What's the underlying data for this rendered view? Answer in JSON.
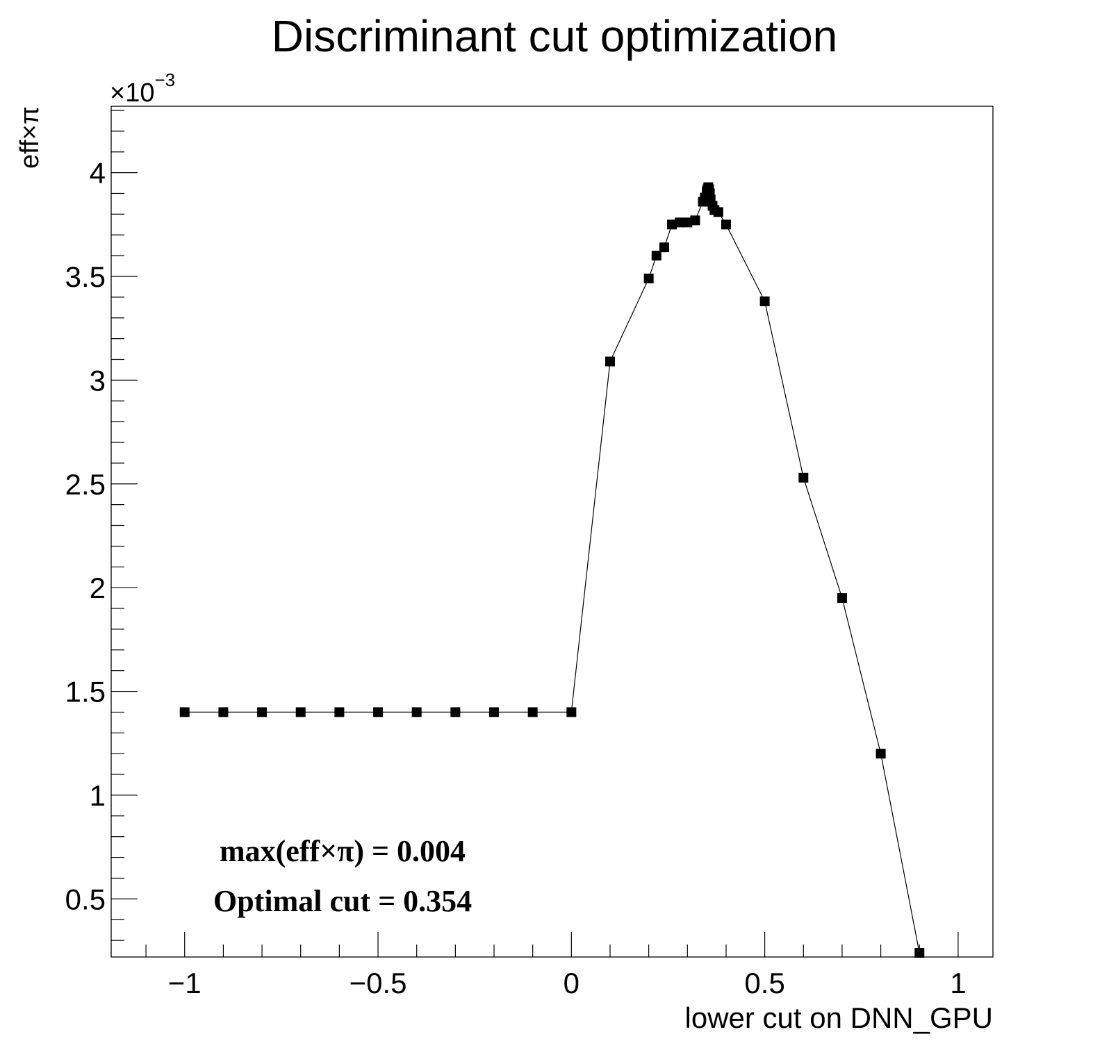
{
  "chart_data": {
    "type": "line",
    "title": "Discriminant cut optimization",
    "xlabel": "lower cut on DNN_GPU",
    "ylabel": "eff×π",
    "y_multiplier": "×10",
    "y_multiplier_exp": "−3",
    "xlim": [
      -1.19,
      1.09
    ],
    "ylim": [
      0.22,
      4.32
    ],
    "x_ticks": [
      -1,
      -0.5,
      0,
      0.5,
      1
    ],
    "x_tick_labels": [
      "−1",
      "−0.5",
      "0",
      "0.5",
      "1"
    ],
    "y_ticks": [
      0.5,
      1,
      1.5,
      2,
      2.5,
      3,
      3.5,
      4
    ],
    "y_tick_labels": [
      "0.5",
      "1",
      "1.5",
      "2",
      "2.5",
      "3",
      "3.5",
      "4"
    ],
    "grid": false,
    "marker": "square",
    "color": "#000000",
    "series": [
      {
        "x": [
          -1.0,
          -0.9,
          -0.8,
          -0.7,
          -0.6,
          -0.5,
          -0.4,
          -0.3,
          -0.2,
          -0.1,
          0.0,
          0.1,
          0.2,
          0.22,
          0.24,
          0.26,
          0.28,
          0.3,
          0.32,
          0.34,
          0.345,
          0.35,
          0.352,
          0.354,
          0.356,
          0.358,
          0.36,
          0.365,
          0.37,
          0.38,
          0.4,
          0.5,
          0.6,
          0.7,
          0.8,
          0.9
        ],
        "y": [
          1.4,
          1.4,
          1.4,
          1.4,
          1.4,
          1.4,
          1.4,
          1.4,
          1.4,
          1.4,
          1.4,
          3.09,
          3.49,
          3.6,
          3.64,
          3.75,
          3.76,
          3.76,
          3.77,
          3.86,
          3.88,
          3.91,
          3.92,
          3.93,
          3.92,
          3.9,
          3.87,
          3.84,
          3.82,
          3.81,
          3.75,
          3.38,
          2.53,
          1.95,
          1.2,
          0.24
        ]
      }
    ],
    "annotations": {
      "max_text": "max(eff×π) =  0.004",
      "cut_text": "Optimal cut =  0.354"
    }
  }
}
